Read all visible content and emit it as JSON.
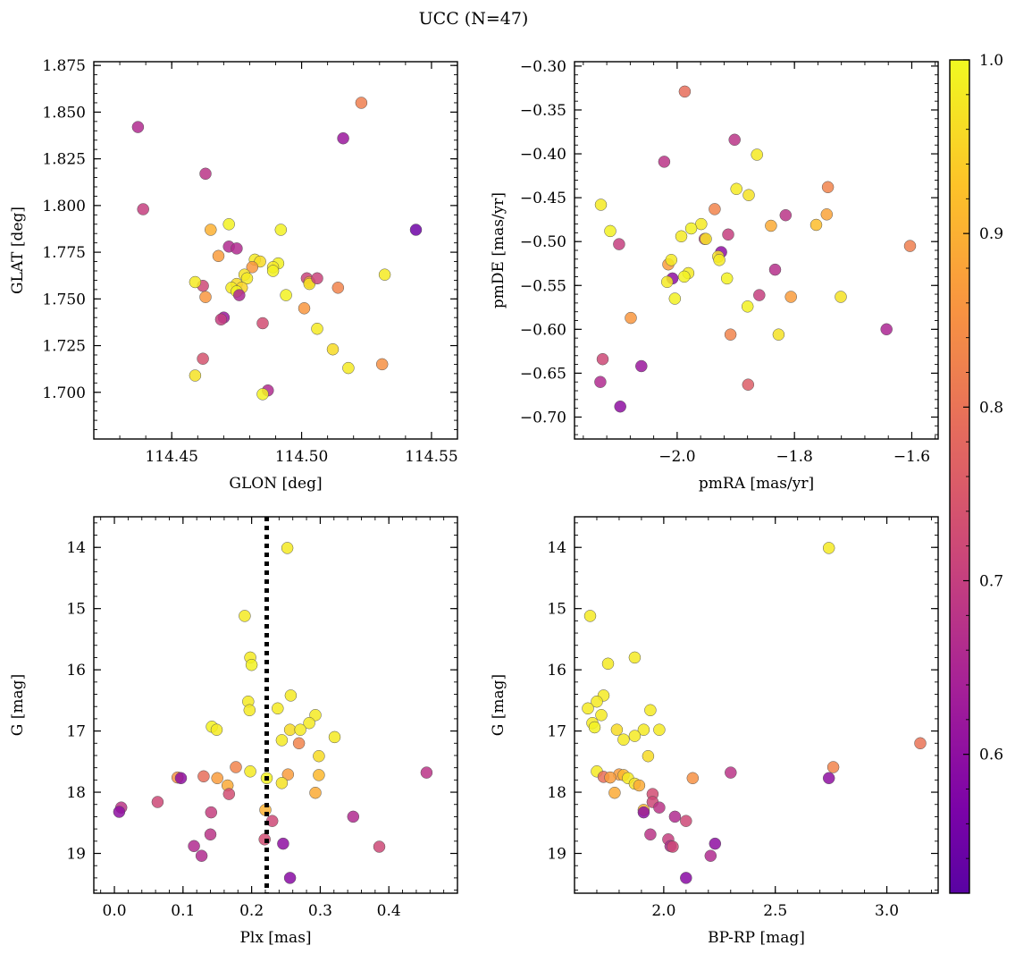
{
  "title": "UCC (N=47)",
  "colormap": {
    "name": "plasma",
    "range": [
      0.52,
      1.0
    ],
    "ticks": [
      0.6,
      0.7,
      0.8,
      0.9,
      1.0
    ],
    "tick_labels": [
      "0.6",
      "0.7",
      "0.8",
      "0.9",
      "1.0"
    ]
  },
  "chart_data": [
    {
      "type": "scatter",
      "id": "glon_glat",
      "xlabel": "GLON [deg]",
      "ylabel": "GLAT [deg]",
      "xlim": [
        114.42,
        114.56
      ],
      "ylim": [
        1.675,
        1.877
      ],
      "xticks": [
        114.45,
        114.5,
        114.55
      ],
      "xtick_labels": [
        "114.45",
        "114.50",
        "114.55"
      ],
      "yticks": [
        1.7,
        1.725,
        1.75,
        1.775,
        1.8,
        1.825,
        1.85,
        1.875
      ],
      "ytick_labels": [
        "1.700",
        "1.725",
        "1.750",
        "1.775",
        "1.800",
        "1.825",
        "1.850",
        "1.875"
      ],
      "y_inverted": false,
      "points": [
        {
          "x": 114.437,
          "y": 1.842,
          "c": 0.66
        },
        {
          "x": 114.439,
          "y": 1.798,
          "c": 0.7
        },
        {
          "x": 114.463,
          "y": 1.817,
          "c": 0.68
        },
        {
          "x": 114.523,
          "y": 1.855,
          "c": 0.82
        },
        {
          "x": 114.516,
          "y": 1.836,
          "c": 0.62
        },
        {
          "x": 114.544,
          "y": 1.787,
          "c": 0.55
        },
        {
          "x": 114.465,
          "y": 1.787,
          "c": 0.9
        },
        {
          "x": 114.472,
          "y": 1.79,
          "c": 0.99
        },
        {
          "x": 114.472,
          "y": 1.778,
          "c": 0.66
        },
        {
          "x": 114.475,
          "y": 1.777,
          "c": 0.66
        },
        {
          "x": 114.468,
          "y": 1.773,
          "c": 0.87
        },
        {
          "x": 114.482,
          "y": 1.771,
          "c": 0.98
        },
        {
          "x": 114.484,
          "y": 1.77,
          "c": 0.96
        },
        {
          "x": 114.481,
          "y": 1.767,
          "c": 0.86
        },
        {
          "x": 114.491,
          "y": 1.769,
          "c": 0.99
        },
        {
          "x": 114.492,
          "y": 1.787,
          "c": 0.99
        },
        {
          "x": 114.489,
          "y": 1.767,
          "c": 0.98
        },
        {
          "x": 114.489,
          "y": 1.765,
          "c": 0.99
        },
        {
          "x": 114.478,
          "y": 1.763,
          "c": 0.97
        },
        {
          "x": 114.479,
          "y": 1.761,
          "c": 0.98
        },
        {
          "x": 114.475,
          "y": 1.758,
          "c": 0.96
        },
        {
          "x": 114.477,
          "y": 1.756,
          "c": 0.95
        },
        {
          "x": 114.473,
          "y": 1.756,
          "c": 0.98
        },
        {
          "x": 114.475,
          "y": 1.754,
          "c": 0.99
        },
        {
          "x": 114.476,
          "y": 1.752,
          "c": 0.65
        },
        {
          "x": 114.462,
          "y": 1.757,
          "c": 0.72
        },
        {
          "x": 114.459,
          "y": 1.759,
          "c": 0.98
        },
        {
          "x": 114.463,
          "y": 1.751,
          "c": 0.86
        },
        {
          "x": 114.494,
          "y": 1.752,
          "c": 0.99
        },
        {
          "x": 114.502,
          "y": 1.761,
          "c": 0.71
        },
        {
          "x": 114.503,
          "y": 1.759,
          "c": 0.86
        },
        {
          "x": 114.503,
          "y": 1.758,
          "c": 0.97
        },
        {
          "x": 114.506,
          "y": 1.761,
          "c": 0.71
        },
        {
          "x": 114.514,
          "y": 1.756,
          "c": 0.83
        },
        {
          "x": 114.532,
          "y": 1.763,
          "c": 0.98
        },
        {
          "x": 114.501,
          "y": 1.745,
          "c": 0.86
        },
        {
          "x": 114.506,
          "y": 1.734,
          "c": 0.98
        },
        {
          "x": 114.47,
          "y": 1.74,
          "c": 0.62
        },
        {
          "x": 114.469,
          "y": 1.739,
          "c": 0.7
        },
        {
          "x": 114.485,
          "y": 1.737,
          "c": 0.73
        },
        {
          "x": 114.512,
          "y": 1.723,
          "c": 0.96
        },
        {
          "x": 114.462,
          "y": 1.718,
          "c": 0.74
        },
        {
          "x": 114.518,
          "y": 1.713,
          "c": 0.98
        },
        {
          "x": 114.531,
          "y": 1.715,
          "c": 0.85
        },
        {
          "x": 114.459,
          "y": 1.709,
          "c": 0.97
        },
        {
          "x": 114.487,
          "y": 1.701,
          "c": 0.66
        },
        {
          "x": 114.485,
          "y": 1.699,
          "c": 0.99
        }
      ]
    },
    {
      "type": "scatter",
      "id": "pmra_pmde",
      "xlabel": "pmRA [mas/yr]",
      "ylabel": "pmDE [mas/yr]",
      "xlim": [
        -2.175,
        -1.555
      ],
      "ylim": [
        -0.725,
        -0.295
      ],
      "xticks": [
        -2.0,
        -1.8,
        -1.6
      ],
      "xtick_labels": [
        "−2.0",
        "−1.8",
        "−1.6"
      ],
      "yticks": [
        -0.7,
        -0.65,
        -0.6,
        -0.55,
        -0.5,
        -0.45,
        -0.4,
        -0.35,
        -0.3
      ],
      "ytick_labels": [
        "−0.70",
        "−0.65",
        "−0.60",
        "−0.55",
        "−0.50",
        "−0.45",
        "−0.40",
        "−0.35",
        "−0.30"
      ],
      "y_inverted": false,
      "points": [
        {
          "x": -1.987,
          "y": -0.329,
          "c": 0.79
        },
        {
          "x": -1.902,
          "y": -0.384,
          "c": 0.68
        },
        {
          "x": -2.022,
          "y": -0.409,
          "c": 0.68
        },
        {
          "x": -1.864,
          "y": -0.401,
          "c": 0.98
        },
        {
          "x": -1.899,
          "y": -0.44,
          "c": 0.98
        },
        {
          "x": -1.878,
          "y": -0.447,
          "c": 0.97
        },
        {
          "x": -1.743,
          "y": -0.438,
          "c": 0.83
        },
        {
          "x": -2.13,
          "y": -0.458,
          "c": 0.98
        },
        {
          "x": -1.936,
          "y": -0.463,
          "c": 0.83
        },
        {
          "x": -1.815,
          "y": -0.47,
          "c": 0.68
        },
        {
          "x": -1.745,
          "y": -0.469,
          "c": 0.88
        },
        {
          "x": -2.114,
          "y": -0.488,
          "c": 0.99
        },
        {
          "x": -1.959,
          "y": -0.48,
          "c": 0.98
        },
        {
          "x": -1.976,
          "y": -0.485,
          "c": 0.99
        },
        {
          "x": -1.84,
          "y": -0.482,
          "c": 0.89
        },
        {
          "x": -1.763,
          "y": -0.481,
          "c": 0.92
        },
        {
          "x": -1.913,
          "y": -0.492,
          "c": 0.7
        },
        {
          "x": -1.993,
          "y": -0.494,
          "c": 0.98
        },
        {
          "x": -1.953,
          "y": -0.497,
          "c": 0.72
        },
        {
          "x": -1.951,
          "y": -0.497,
          "c": 0.97
        },
        {
          "x": -2.099,
          "y": -0.503,
          "c": 0.7
        },
        {
          "x": -1.603,
          "y": -0.505,
          "c": 0.82
        },
        {
          "x": -1.925,
          "y": -0.512,
          "c": 0.6
        },
        {
          "x": -1.93,
          "y": -0.517,
          "c": 0.97
        },
        {
          "x": -1.928,
          "y": -0.521,
          "c": 0.98
        },
        {
          "x": -2.015,
          "y": -0.526,
          "c": 0.87
        },
        {
          "x": -2.01,
          "y": -0.521,
          "c": 0.98
        },
        {
          "x": -1.833,
          "y": -0.532,
          "c": 0.67
        },
        {
          "x": -1.981,
          "y": -0.536,
          "c": 0.98
        },
        {
          "x": -1.988,
          "y": -0.54,
          "c": 0.99
        },
        {
          "x": -2.008,
          "y": -0.542,
          "c": 0.6
        },
        {
          "x": -1.915,
          "y": -0.542,
          "c": 0.99
        },
        {
          "x": -2.017,
          "y": -0.546,
          "c": 0.98
        },
        {
          "x": -1.86,
          "y": -0.561,
          "c": 0.7
        },
        {
          "x": -1.806,
          "y": -0.563,
          "c": 0.87
        },
        {
          "x": -1.721,
          "y": -0.563,
          "c": 0.97
        },
        {
          "x": -2.004,
          "y": -0.565,
          "c": 0.99
        },
        {
          "x": -1.88,
          "y": -0.574,
          "c": 0.99
        },
        {
          "x": -2.079,
          "y": -0.587,
          "c": 0.86
        },
        {
          "x": -1.643,
          "y": -0.6,
          "c": 0.65
        },
        {
          "x": -1.909,
          "y": -0.606,
          "c": 0.83
        },
        {
          "x": -1.827,
          "y": -0.606,
          "c": 0.97
        },
        {
          "x": -2.127,
          "y": -0.634,
          "c": 0.72
        },
        {
          "x": -2.061,
          "y": -0.642,
          "c": 0.62
        },
        {
          "x": -2.131,
          "y": -0.66,
          "c": 0.66
        },
        {
          "x": -1.879,
          "y": -0.663,
          "c": 0.76
        },
        {
          "x": -2.097,
          "y": -0.688,
          "c": 0.6
        }
      ]
    },
    {
      "type": "scatter",
      "id": "plx_g",
      "xlabel": "Plx [mas]",
      "ylabel": "G [mag]",
      "xlim": [
        -0.03,
        0.5
      ],
      "ylim": [
        19.65,
        13.5
      ],
      "xticks": [
        0.0,
        0.1,
        0.2,
        0.3,
        0.4
      ],
      "xtick_labels": [
        "0.0",
        "0.1",
        "0.2",
        "0.3",
        "0.4"
      ],
      "yticks": [
        14,
        15,
        16,
        17,
        18,
        19
      ],
      "ytick_labels": [
        "14",
        "15",
        "16",
        "17",
        "18",
        "19"
      ],
      "y_inverted": true,
      "vline": {
        "x": 0.222
      },
      "points": [
        {
          "x": 0.252,
          "y": 14.01,
          "c": 0.98
        },
        {
          "x": 0.19,
          "y": 15.12,
          "c": 0.98
        },
        {
          "x": 0.198,
          "y": 15.8,
          "c": 0.98
        },
        {
          "x": 0.2,
          "y": 15.92,
          "c": 0.99
        },
        {
          "x": 0.257,
          "y": 16.42,
          "c": 0.98
        },
        {
          "x": 0.195,
          "y": 16.52,
          "c": 0.98
        },
        {
          "x": 0.238,
          "y": 16.63,
          "c": 0.98
        },
        {
          "x": 0.197,
          "y": 16.66,
          "c": 0.98
        },
        {
          "x": 0.293,
          "y": 16.74,
          "c": 0.98
        },
        {
          "x": 0.284,
          "y": 16.87,
          "c": 0.98
        },
        {
          "x": 0.142,
          "y": 16.93,
          "c": 0.99
        },
        {
          "x": 0.149,
          "y": 16.98,
          "c": 0.98
        },
        {
          "x": 0.256,
          "y": 16.98,
          "c": 0.96
        },
        {
          "x": 0.271,
          "y": 16.98,
          "c": 0.98
        },
        {
          "x": 0.321,
          "y": 17.1,
          "c": 0.98
        },
        {
          "x": 0.244,
          "y": 17.15,
          "c": 0.98
        },
        {
          "x": 0.269,
          "y": 17.2,
          "c": 0.83
        },
        {
          "x": 0.298,
          "y": 17.41,
          "c": 0.96
        },
        {
          "x": 0.177,
          "y": 17.59,
          "c": 0.83
        },
        {
          "x": 0.198,
          "y": 17.66,
          "c": 0.98
        },
        {
          "x": 0.455,
          "y": 17.68,
          "c": 0.68
        },
        {
          "x": 0.253,
          "y": 17.71,
          "c": 0.87
        },
        {
          "x": 0.298,
          "y": 17.72,
          "c": 0.91
        },
        {
          "x": 0.13,
          "y": 17.74,
          "c": 0.79
        },
        {
          "x": 0.092,
          "y": 17.76,
          "c": 0.85
        },
        {
          "x": 0.097,
          "y": 17.77,
          "c": 0.6
        },
        {
          "x": 0.15,
          "y": 17.77,
          "c": 0.87
        },
        {
          "x": 0.222,
          "y": 17.77,
          "c": 0.99
        },
        {
          "x": 0.165,
          "y": 17.89,
          "c": 0.89
        },
        {
          "x": 0.244,
          "y": 17.85,
          "c": 0.97
        },
        {
          "x": 0.293,
          "y": 18.01,
          "c": 0.89
        },
        {
          "x": 0.167,
          "y": 18.03,
          "c": 0.73
        },
        {
          "x": 0.063,
          "y": 18.16,
          "c": 0.72
        },
        {
          "x": 0.01,
          "y": 18.25,
          "c": 0.68
        },
        {
          "x": 0.007,
          "y": 18.32,
          "c": 0.6
        },
        {
          "x": 0.22,
          "y": 18.29,
          "c": 0.9
        },
        {
          "x": 0.141,
          "y": 18.33,
          "c": 0.7
        },
        {
          "x": 0.348,
          "y": 18.4,
          "c": 0.66
        },
        {
          "x": 0.23,
          "y": 18.47,
          "c": 0.72
        },
        {
          "x": 0.14,
          "y": 18.69,
          "c": 0.68
        },
        {
          "x": 0.219,
          "y": 18.77,
          "c": 0.73
        },
        {
          "x": 0.246,
          "y": 18.84,
          "c": 0.6
        },
        {
          "x": 0.116,
          "y": 18.88,
          "c": 0.66
        },
        {
          "x": 0.386,
          "y": 18.89,
          "c": 0.72
        },
        {
          "x": 0.127,
          "y": 19.04,
          "c": 0.66
        },
        {
          "x": 0.256,
          "y": 19.4,
          "c": 0.59
        }
      ]
    },
    {
      "type": "scatter",
      "id": "bprp_g",
      "xlabel": "BP-RP [mag]",
      "ylabel": "G [mag]",
      "xlim": [
        1.6,
        3.23
      ],
      "ylim": [
        19.65,
        13.5
      ],
      "xticks": [
        2.0,
        2.5,
        3.0
      ],
      "xtick_labels": [
        "2.0",
        "2.5",
        "3.0"
      ],
      "yticks": [
        14,
        15,
        16,
        17,
        18,
        19
      ],
      "ytick_labels": [
        "14",
        "15",
        "16",
        "17",
        "18",
        "19"
      ],
      "y_inverted": true,
      "points": [
        {
          "x": 2.74,
          "y": 14.01,
          "c": 0.98
        },
        {
          "x": 1.67,
          "y": 15.12,
          "c": 0.98
        },
        {
          "x": 1.87,
          "y": 15.8,
          "c": 0.98
        },
        {
          "x": 1.75,
          "y": 15.9,
          "c": 0.98
        },
        {
          "x": 1.73,
          "y": 16.42,
          "c": 0.98
        },
        {
          "x": 1.7,
          "y": 16.52,
          "c": 0.98
        },
        {
          "x": 1.66,
          "y": 16.63,
          "c": 0.98
        },
        {
          "x": 1.94,
          "y": 16.66,
          "c": 0.98
        },
        {
          "x": 1.72,
          "y": 16.74,
          "c": 0.98
        },
        {
          "x": 1.68,
          "y": 16.87,
          "c": 0.98
        },
        {
          "x": 1.69,
          "y": 16.94,
          "c": 0.99
        },
        {
          "x": 1.79,
          "y": 16.98,
          "c": 0.96
        },
        {
          "x": 1.91,
          "y": 16.98,
          "c": 0.98
        },
        {
          "x": 1.98,
          "y": 16.98,
          "c": 0.98
        },
        {
          "x": 1.87,
          "y": 17.08,
          "c": 0.98
        },
        {
          "x": 1.82,
          "y": 17.14,
          "c": 0.98
        },
        {
          "x": 3.15,
          "y": 17.2,
          "c": 0.8
        },
        {
          "x": 1.93,
          "y": 17.41,
          "c": 0.96
        },
        {
          "x": 2.76,
          "y": 17.59,
          "c": 0.83
        },
        {
          "x": 1.7,
          "y": 17.66,
          "c": 0.98
        },
        {
          "x": 2.3,
          "y": 17.68,
          "c": 0.68
        },
        {
          "x": 1.8,
          "y": 17.71,
          "c": 0.87
        },
        {
          "x": 1.82,
          "y": 17.72,
          "c": 0.91
        },
        {
          "x": 1.73,
          "y": 17.75,
          "c": 0.79
        },
        {
          "x": 1.76,
          "y": 17.76,
          "c": 0.87
        },
        {
          "x": 1.84,
          "y": 17.77,
          "c": 0.98
        },
        {
          "x": 2.74,
          "y": 17.77,
          "c": 0.6
        },
        {
          "x": 2.13,
          "y": 17.77,
          "c": 0.85
        },
        {
          "x": 1.87,
          "y": 17.86,
          "c": 0.97
        },
        {
          "x": 1.89,
          "y": 17.89,
          "c": 0.89
        },
        {
          "x": 1.78,
          "y": 18.01,
          "c": 0.89
        },
        {
          "x": 1.95,
          "y": 18.03,
          "c": 0.73
        },
        {
          "x": 1.95,
          "y": 18.16,
          "c": 0.72
        },
        {
          "x": 1.98,
          "y": 18.25,
          "c": 0.68
        },
        {
          "x": 1.91,
          "y": 18.29,
          "c": 0.9
        },
        {
          "x": 1.91,
          "y": 18.33,
          "c": 0.6
        },
        {
          "x": 2.05,
          "y": 18.4,
          "c": 0.66
        },
        {
          "x": 2.1,
          "y": 18.47,
          "c": 0.72
        },
        {
          "x": 1.94,
          "y": 18.69,
          "c": 0.68
        },
        {
          "x": 2.02,
          "y": 18.77,
          "c": 0.7
        },
        {
          "x": 2.23,
          "y": 18.84,
          "c": 0.6
        },
        {
          "x": 2.03,
          "y": 18.88,
          "c": 0.66
        },
        {
          "x": 2.04,
          "y": 18.89,
          "c": 0.72
        },
        {
          "x": 2.21,
          "y": 19.04,
          "c": 0.66
        },
        {
          "x": 2.1,
          "y": 19.4,
          "c": 0.59
        }
      ]
    }
  ]
}
